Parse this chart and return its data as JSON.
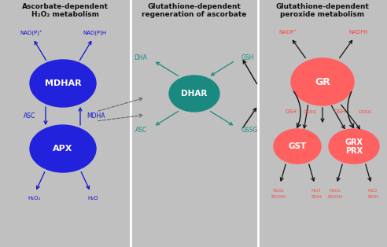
{
  "bg_color": "#c0c0c0",
  "title1": "Ascorbate-dependent\nH₂O₂ metabolism",
  "title2": "Glutathione-dependent\nregeneration of ascorbate",
  "title3": "Glutathione-dependent\nperoxide metabolism",
  "blue_color": "#2222dd",
  "teal_color": "#1a8a80",
  "red_color": "#ff6060",
  "blue_label": "#1111cc",
  "teal_label": "#1a8a80",
  "red_label": "#ff4444",
  "title_color": "#111111",
  "div_color": "#aaaaaa",
  "arrow_black": "#111111",
  "arrow_gray": "#666666"
}
